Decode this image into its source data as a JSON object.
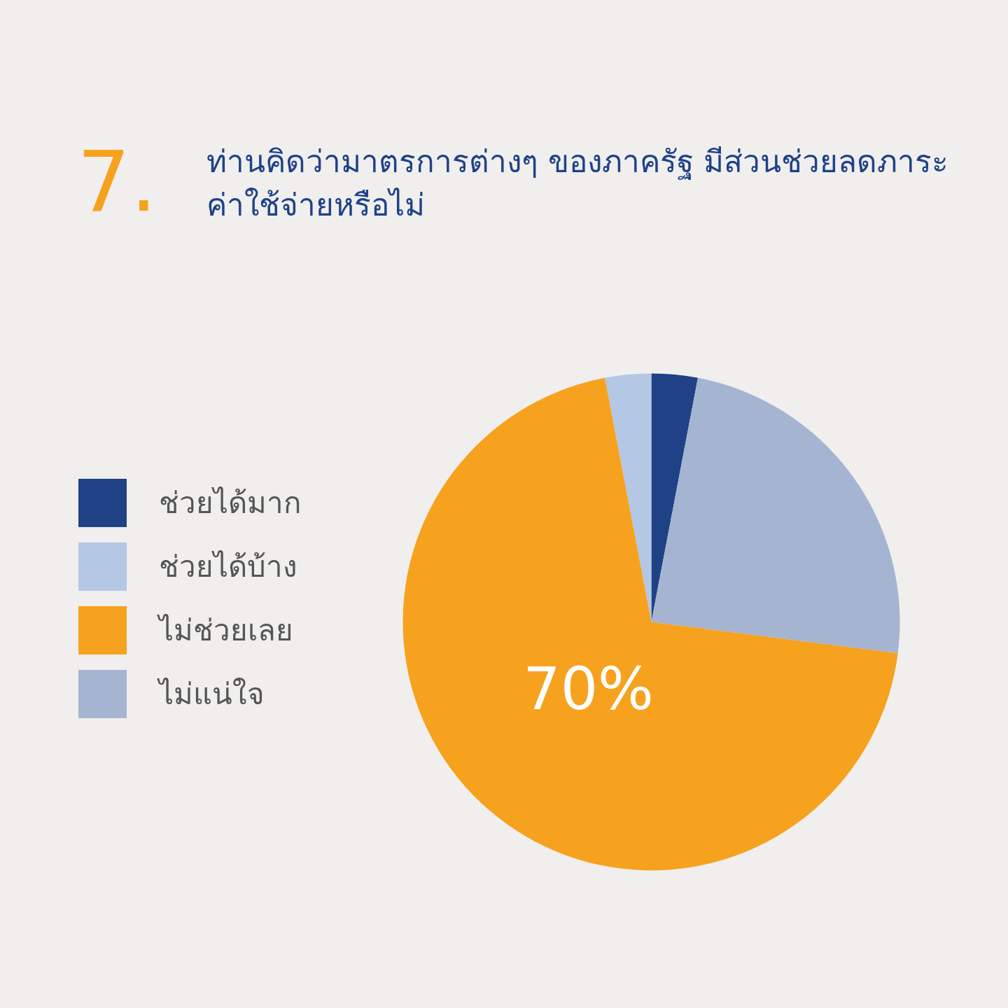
{
  "chart_data": {
    "type": "pie",
    "title": "ท่านคิดว่ามาตรการต่างๆ ของภาครัฐ มีส่วนช่วยลดภาระค่าใช้จ่ายหรือไม่",
    "annotations": [
      "7."
    ],
    "categories": [
      "ช่วยได้มาก",
      "ช่วยได้บ้าง",
      "ไม่ช่วยเลย",
      "ไม่แน่ใจ"
    ],
    "values": [
      3,
      3,
      70,
      24
    ],
    "colors": [
      "#1f4287",
      "#b4c7e4",
      "#f6a21e",
      "#a5b5d1"
    ],
    "value_labels": [
      null,
      null,
      "70%",
      null
    ],
    "legend": "left"
  }
}
